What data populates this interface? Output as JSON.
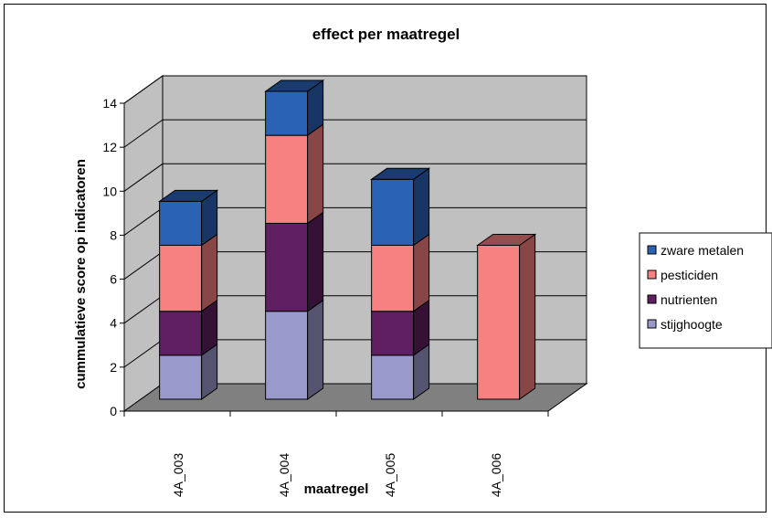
{
  "chart_data": {
    "type": "bar",
    "stacked": true,
    "three_d": true,
    "title": "effect per maatregel",
    "xlabel": "maatregel",
    "ylabel": "cummulatieve score op indicatoren",
    "categories": [
      "4A_003",
      "4A_004",
      "4A_005",
      "4A_006"
    ],
    "ylim": [
      0,
      14
    ],
    "yticks": [
      "0",
      "2",
      "4",
      "6",
      "8",
      "10",
      "12",
      "14"
    ],
    "grid": true,
    "legend_position": "right",
    "series": [
      {
        "name": "stijghoogte",
        "values": [
          2,
          4,
          2,
          0
        ],
        "color": "#9999CC"
      },
      {
        "name": "nutrienten",
        "values": [
          2,
          4,
          2,
          0
        ],
        "color": "#5F1F60"
      },
      {
        "name": "pesticiden",
        "values": [
          3,
          4,
          3,
          7
        ],
        "color": "#F78080"
      },
      {
        "name": "zware metalen",
        "values": [
          2,
          2,
          3,
          0
        ],
        "color": "#2A63B5"
      }
    ],
    "legend_order": [
      "zware metalen",
      "pesticiden",
      "nutrienten",
      "stijghoogte"
    ]
  }
}
